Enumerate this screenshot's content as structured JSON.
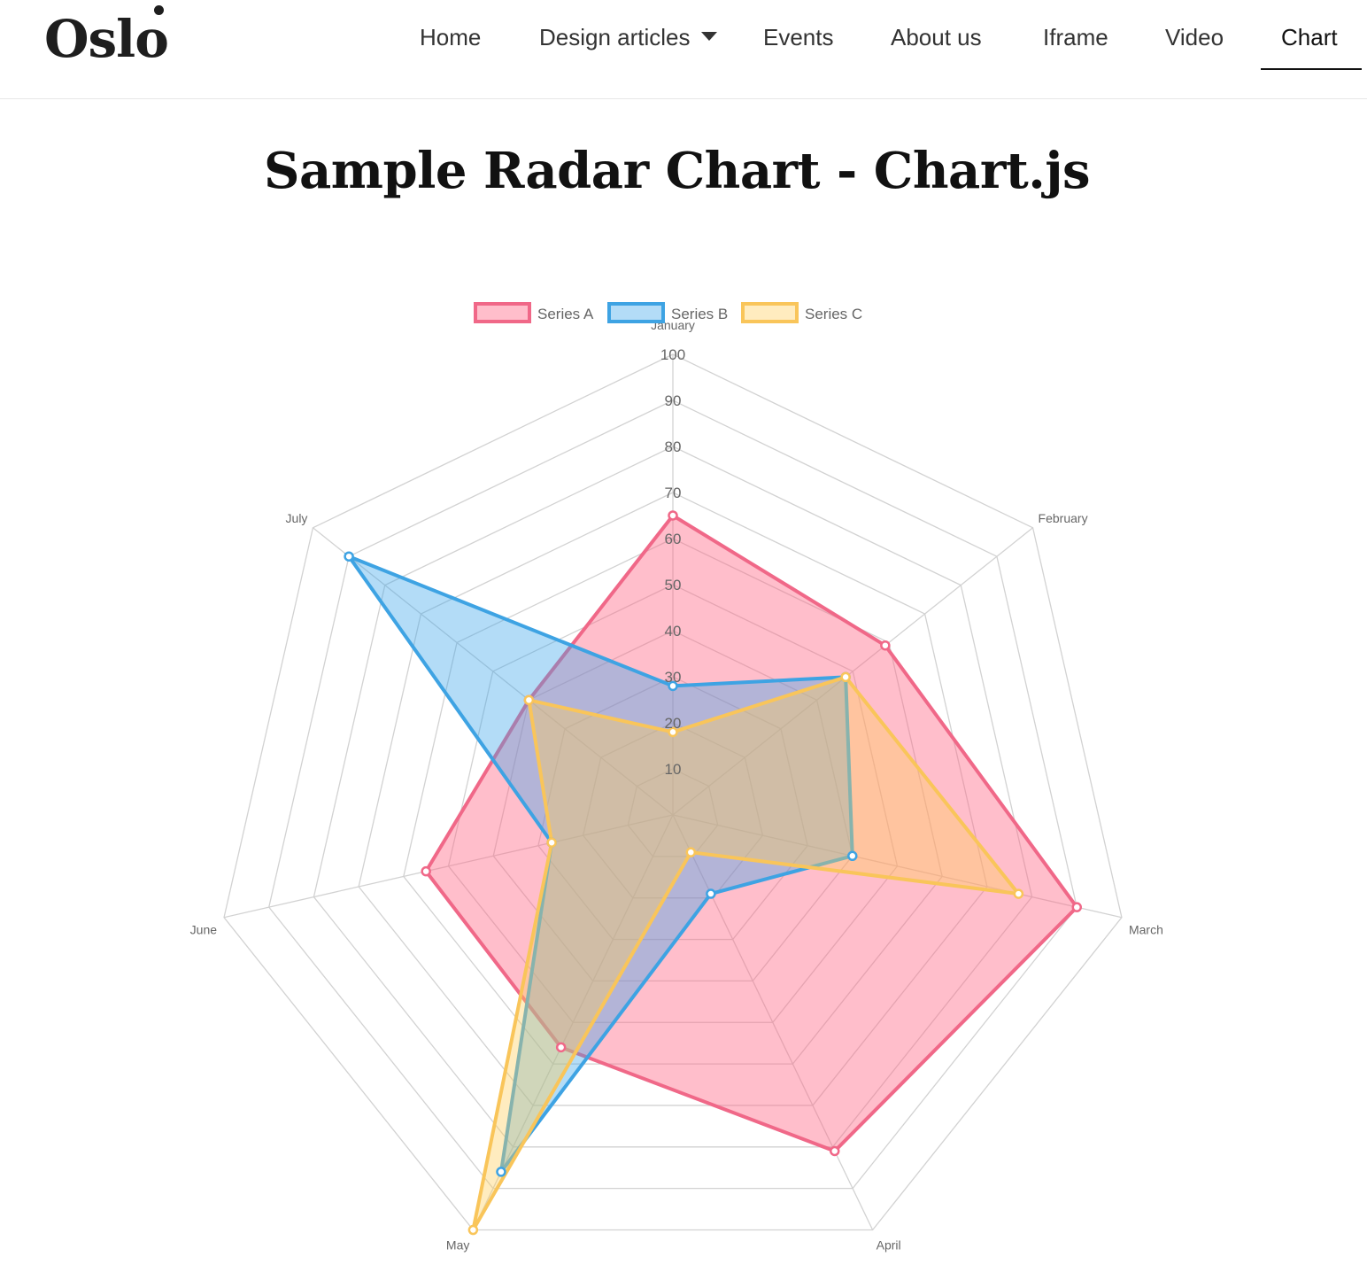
{
  "header": {
    "logo": "Oslo",
    "nav": [
      {
        "label": "Home"
      },
      {
        "label": "Design articles",
        "has_dropdown": true
      },
      {
        "label": "Events"
      },
      {
        "label": "About us"
      },
      {
        "label": "Iframe"
      },
      {
        "label": "Video"
      },
      {
        "label": "Chart",
        "active": true
      }
    ]
  },
  "page": {
    "title": "Sample Radar Chart - Chart.js"
  },
  "chart_data": {
    "type": "radar",
    "labels": [
      "January",
      "February",
      "March",
      "April",
      "May",
      "June",
      "July"
    ],
    "r_range": [
      0,
      100
    ],
    "r_ticks": [
      10,
      20,
      30,
      40,
      50,
      60,
      70,
      80,
      90,
      100
    ],
    "legend_position": "top",
    "grid": true,
    "series": [
      {
        "name": "Series A",
        "values": [
          65,
          59,
          90,
          81,
          56,
          55,
          40
        ],
        "border_color": "#f06888",
        "fill_color": "rgba(255,99,132,0.42)"
      },
      {
        "name": "Series B",
        "values": [
          28,
          48,
          40,
          19,
          86,
          27,
          90
        ],
        "border_color": "#3ea3e3",
        "fill_color": "rgba(54,162,235,0.38)"
      },
      {
        "name": "Series C",
        "values": [
          18,
          48,
          77,
          9,
          100,
          27,
          40
        ],
        "border_color": "#f9c55a",
        "fill_color": "rgba(255,206,86,0.38)"
      }
    ]
  }
}
